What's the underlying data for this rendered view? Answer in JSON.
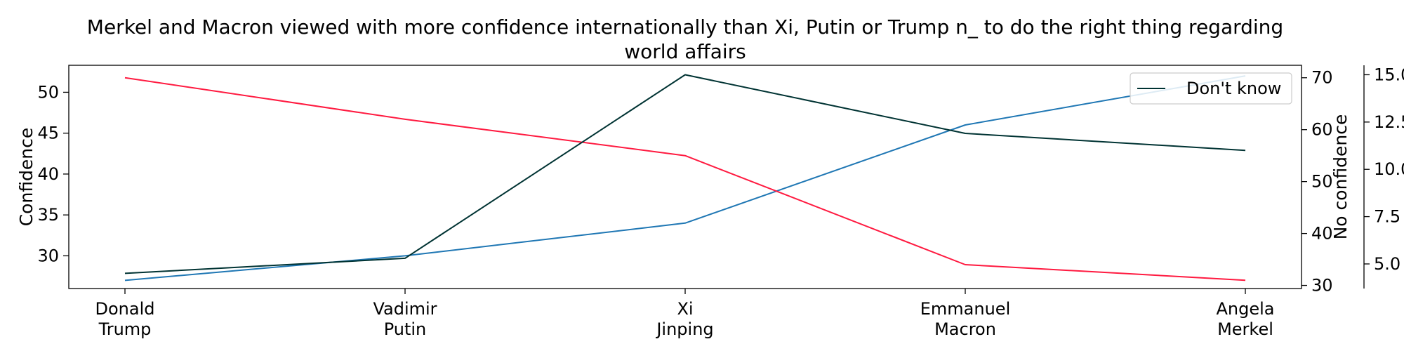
{
  "chart_data": {
    "type": "line",
    "title_lines": [
      "Merkel and Macron viewed with more confidence internationally than Xi, Putin or Trump n_ to do the right thing regarding",
      "world affairs"
    ],
    "categories": [
      [
        "Donald",
        "Trump"
      ],
      [
        "Vadimir",
        "Putin"
      ],
      [
        "Xi",
        "Jinping"
      ],
      [
        "Emmanuel",
        "Macron"
      ],
      [
        "Angela",
        "Merkel"
      ]
    ],
    "axes": {
      "left": {
        "label": "Confidence",
        "ylim": [
          26,
          53.3
        ],
        "ticks": [
          30,
          35,
          40,
          45,
          50
        ],
        "tick_labels": [
          "30",
          "35",
          "40",
          "45",
          "50"
        ]
      },
      "right1": {
        "label": "No confidence",
        "ylim": [
          29.4,
          72.4
        ],
        "ticks": [
          30,
          40,
          50,
          60,
          70
        ],
        "tick_labels": [
          "30",
          "40",
          "50",
          "60",
          "70"
        ]
      },
      "right2": {
        "label": "",
        "ylim": [
          3.7,
          15.5
        ],
        "ticks": [
          5,
          7.5,
          10,
          12.5,
          15
        ],
        "tick_labels": [
          "5.0",
          "7.5",
          "10.0",
          "12.5",
          "15.0"
        ]
      }
    },
    "series": [
      {
        "name": "",
        "axis": "left",
        "color": "#1f77b4",
        "values": [
          27,
          30,
          34,
          46,
          52
        ]
      },
      {
        "name": "",
        "axis": "right1",
        "color": "#ff1a40",
        "values": [
          70,
          62,
          55,
          34,
          31
        ]
      },
      {
        "name": "Don't know",
        "axis": "right2",
        "color": "#003333",
        "values": [
          4.5,
          5.3,
          15,
          11.9,
          11
        ]
      }
    ],
    "legend": {
      "position": "top-right",
      "entries": [
        "Don't know"
      ]
    },
    "grid": false
  }
}
